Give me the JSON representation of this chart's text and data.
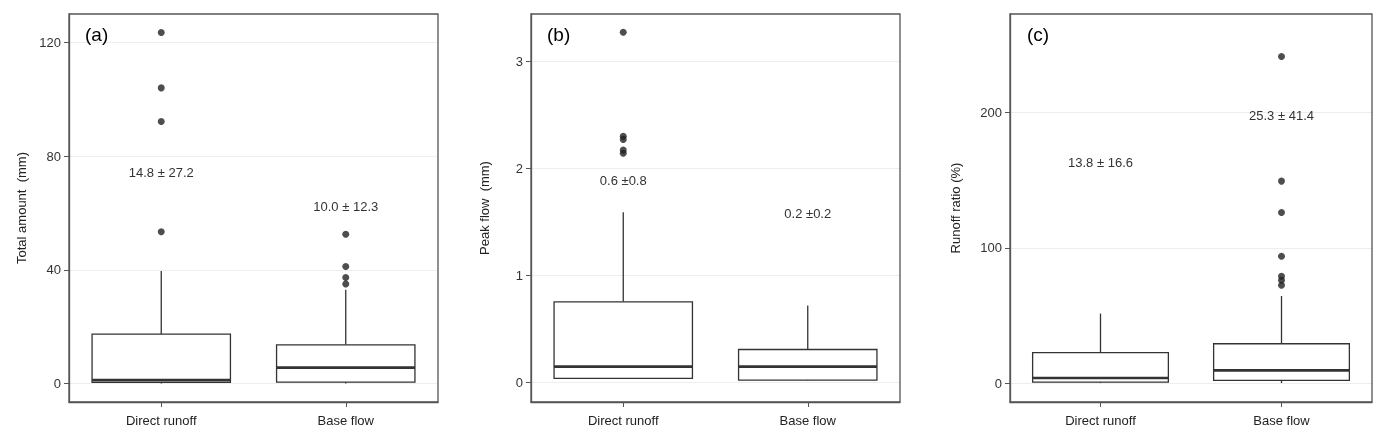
{
  "chart_data": [
    {
      "type": "box",
      "title": "(a)",
      "ylabel": "Total amount  (mm)",
      "categories": [
        "Direct runoff",
        "Base flow"
      ],
      "ylim": [
        -6.5,
        130
      ],
      "yticks": [
        0,
        40,
        80,
        120
      ],
      "grid": "y",
      "color": "#333333",
      "boxes": [
        {
          "low": 0,
          "q1": 0.4,
          "median": 1.2,
          "q3": 17.4,
          "high": 39.6
        },
        {
          "low": 0,
          "q1": 0.5,
          "median": 5.6,
          "q3": 13.6,
          "high": 33
        }
      ],
      "series": [
        {
          "type": "scatter",
          "color": "#222222",
          "x": [
            "Direct runoff",
            "Direct runoff",
            "Direct runoff",
            "Direct runoff",
            "Base flow",
            "Base flow",
            "Base flow",
            "Base flow"
          ],
          "values": [
            123.5,
            104,
            92.2,
            53.4,
            52.5,
            41.2,
            37.3,
            35
          ]
        }
      ],
      "annotations": [
        "14.8 ± 27.2",
        "10.0 ± 12.3"
      ]
    },
    {
      "type": "box",
      "title": "(b)",
      "ylabel": "Peak flow  (mm)",
      "categories": [
        "Direct runoff",
        "Base flow"
      ],
      "ylim": [
        -0.18,
        3.44
      ],
      "yticks": [
        0,
        1,
        2,
        3
      ],
      "grid": "y",
      "color": "#333333",
      "boxes": [
        {
          "low": 0.04,
          "q1": 0.04,
          "median": 0.15,
          "q3": 0.755,
          "high": 1.59
        },
        {
          "low": 0.02,
          "q1": 0.025,
          "median": 0.15,
          "q3": 0.31,
          "high": 0.72
        }
      ],
      "series": [
        {
          "type": "scatter",
          "color": "#222222",
          "x": [
            "Direct runoff",
            "Direct runoff",
            "Direct runoff",
            "Direct runoff",
            "Direct runoff"
          ],
          "values": [
            3.27,
            2.3,
            2.27,
            2.17,
            2.14
          ]
        }
      ],
      "annotations": [
        "0.6 ±0.8",
        "0.2 ±0.2"
      ]
    },
    {
      "type": "box",
      "title": "(c)",
      "ylabel": "Runoff ratio (%)",
      "categories": [
        "Direct runoff",
        "Base flow"
      ],
      "ylim": [
        -14,
        273
      ],
      "yticks": [
        0,
        100,
        200
      ],
      "grid": "y",
      "color": "#333333",
      "boxes": [
        {
          "low": 0,
          "q1": 0.7,
          "median": 3.7,
          "q3": 22.5,
          "high": 51.4
        },
        {
          "low": 0,
          "q1": 2,
          "median": 9.4,
          "q3": 29.1,
          "high": 64.4
        }
      ],
      "series": [
        {
          "type": "scatter",
          "color": "#222222",
          "x": [
            "Base flow",
            "Base flow",
            "Base flow",
            "Base flow",
            "Base flow",
            "Base flow",
            "Base flow"
          ],
          "values": [
            241.5,
            149.4,
            126.2,
            93.8,
            79,
            76,
            72.3
          ]
        }
      ],
      "annotations": [
        "13.8 ± 16.6",
        "25.3 ± 41.4"
      ]
    }
  ]
}
